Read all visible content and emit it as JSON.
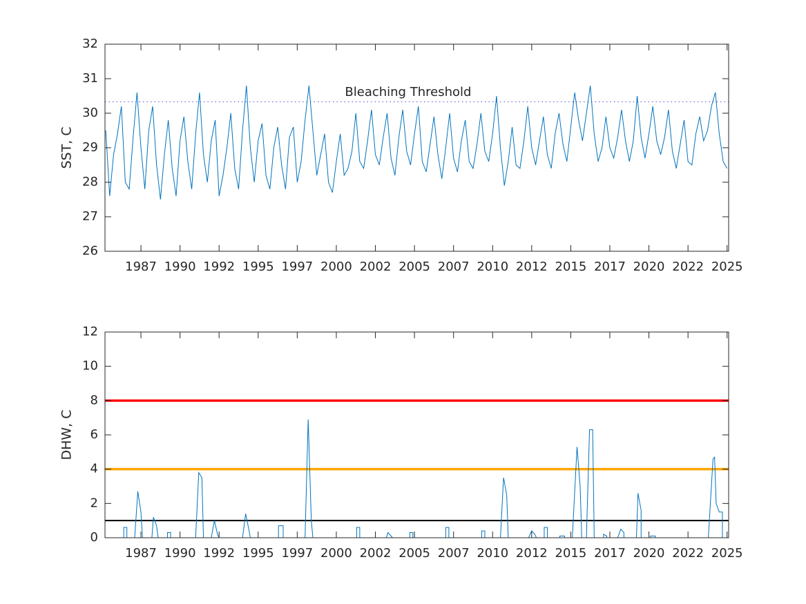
{
  "chart_data": [
    {
      "type": "line",
      "ylabel": "SST, C",
      "xlim": [
        1985.2,
        2025.1
      ],
      "xticks": [
        {
          "value": 1987.5,
          "label": "1987"
        },
        {
          "value": 1990.0,
          "label": "1990"
        },
        {
          "value": 1992.5,
          "label": "1992"
        },
        {
          "value": 1995.0,
          "label": "1995"
        },
        {
          "value": 1997.5,
          "label": "1997"
        },
        {
          "value": 2000.0,
          "label": "2000"
        },
        {
          "value": 2002.5,
          "label": "2002"
        },
        {
          "value": 2005.0,
          "label": "2005"
        },
        {
          "value": 2007.5,
          "label": "2007"
        },
        {
          "value": 2010.0,
          "label": "2010"
        },
        {
          "value": 2012.5,
          "label": "2012"
        },
        {
          "value": 2015.0,
          "label": "2015"
        },
        {
          "value": 2017.5,
          "label": "2017"
        },
        {
          "value": 2020.0,
          "label": "2020"
        },
        {
          "value": 2022.5,
          "label": "2022"
        },
        {
          "value": 2025.0,
          "label": "2025"
        }
      ],
      "ylim": [
        26,
        32
      ],
      "yticks": [
        26,
        27,
        28,
        29,
        30,
        31,
        32
      ],
      "x": [
        1985.25,
        1985.5,
        1985.75,
        1986.0,
        1986.25,
        1986.5,
        1986.75,
        1987.0,
        1987.25,
        1987.5,
        1987.75,
        1988.0,
        1988.25,
        1988.5,
        1988.75,
        1989.0,
        1989.25,
        1989.5,
        1989.75,
        1990.0,
        1990.25,
        1990.5,
        1990.75,
        1991.0,
        1991.25,
        1991.5,
        1991.75,
        1992.0,
        1992.25,
        1992.5,
        1992.75,
        1993.0,
        1993.25,
        1993.5,
        1993.75,
        1994.0,
        1994.25,
        1994.5,
        1994.75,
        1995.0,
        1995.25,
        1995.5,
        1995.75,
        1996.0,
        1996.25,
        1996.5,
        1996.75,
        1997.0,
        1997.25,
        1997.5,
        1997.75,
        1998.0,
        1998.25,
        1998.5,
        1998.75,
        1999.0,
        1999.25,
        1999.5,
        1999.75,
        2000.0,
        2000.25,
        2000.5,
        2000.75,
        2001.0,
        2001.25,
        2001.5,
        2001.75,
        2002.0,
        2002.25,
        2002.5,
        2002.75,
        2003.0,
        2003.25,
        2003.5,
        2003.75,
        2004.0,
        2004.25,
        2004.5,
        2004.75,
        2005.0,
        2005.25,
        2005.5,
        2005.75,
        2006.0,
        2006.25,
        2006.5,
        2006.75,
        2007.0,
        2007.25,
        2007.5,
        2007.75,
        2008.0,
        2008.25,
        2008.5,
        2008.75,
        2009.0,
        2009.25,
        2009.5,
        2009.75,
        2010.0,
        2010.25,
        2010.5,
        2010.75,
        2011.0,
        2011.25,
        2011.5,
        2011.75,
        2012.0,
        2012.25,
        2012.5,
        2012.75,
        2013.0,
        2013.25,
        2013.5,
        2013.75,
        2014.0,
        2014.25,
        2014.5,
        2014.75,
        2015.0,
        2015.25,
        2015.5,
        2015.75,
        2016.0,
        2016.25,
        2016.5,
        2016.75,
        2017.0,
        2017.25,
        2017.5,
        2017.75,
        2018.0,
        2018.25,
        2018.5,
        2018.75,
        2019.0,
        2019.25,
        2019.5,
        2019.75,
        2020.0,
        2020.25,
        2020.5,
        2020.75,
        2021.0,
        2021.25,
        2021.5,
        2021.75,
        2022.0,
        2022.25,
        2022.5,
        2022.75,
        2023.0,
        2023.25,
        2023.5,
        2023.75,
        2024.0,
        2024.25,
        2024.5,
        2024.75,
        2025.0
      ],
      "series": [
        {
          "color": "#0072bd",
          "values": [
            29.5,
            27.6,
            28.8,
            29.4,
            30.2,
            28.0,
            27.8,
            29.3,
            30.6,
            29.0,
            27.8,
            29.5,
            30.2,
            28.5,
            27.5,
            28.8,
            29.8,
            28.4,
            27.6,
            29.2,
            29.9,
            28.6,
            27.8,
            29.4,
            30.6,
            28.8,
            28.0,
            29.2,
            29.8,
            27.6,
            28.2,
            29.0,
            30.0,
            28.4,
            27.8,
            29.5,
            30.8,
            29.0,
            28.0,
            29.2,
            29.7,
            28.2,
            27.8,
            29.0,
            29.6,
            28.5,
            27.8,
            29.3,
            29.6,
            28.0,
            28.6,
            29.8,
            30.8,
            29.5,
            28.2,
            28.8,
            29.4,
            28.0,
            27.7,
            28.6,
            29.4,
            28.2,
            28.4,
            28.9,
            30.0,
            28.6,
            28.4,
            29.2,
            30.1,
            28.8,
            28.5,
            29.3,
            30.0,
            28.7,
            28.2,
            29.3,
            30.1,
            28.9,
            28.5,
            29.4,
            30.2,
            28.6,
            28.3,
            29.1,
            29.9,
            28.8,
            28.1,
            29.0,
            30.0,
            28.7,
            28.3,
            29.2,
            29.8,
            28.6,
            28.4,
            29.1,
            30.0,
            28.9,
            28.6,
            29.4,
            30.5,
            29.0,
            27.9,
            28.6,
            29.6,
            28.5,
            28.4,
            29.2,
            30.2,
            29.0,
            28.5,
            29.2,
            29.9,
            28.8,
            28.4,
            29.4,
            30.0,
            29.1,
            28.6,
            29.6,
            30.6,
            29.8,
            29.2,
            30.0,
            30.8,
            29.4,
            28.6,
            29.0,
            29.9,
            29.0,
            28.7,
            29.3,
            30.1,
            29.2,
            28.6,
            29.2,
            30.5,
            29.3,
            28.7,
            29.4,
            30.2,
            29.2,
            28.8,
            29.3,
            30.1,
            28.9,
            28.4,
            29.1,
            29.8,
            28.6,
            28.5,
            29.4,
            29.9,
            29.2,
            29.5,
            30.2,
            30.6,
            29.4,
            28.6,
            28.4
          ]
        }
      ],
      "hlines": [
        {
          "value": 30.33,
          "color": "#6b6bd6",
          "style": "dotted",
          "width": 1.3
        }
      ],
      "annotations": [
        {
          "text": "Bleaching Threshold",
          "x": 2000.55,
          "y": 30.6
        }
      ]
    },
    {
      "type": "line",
      "ylabel": "DHW, C",
      "xlim": [
        1985.2,
        2025.1
      ],
      "xticks": [
        {
          "value": 1987.5,
          "label": "1987"
        },
        {
          "value": 1990.0,
          "label": "1990"
        },
        {
          "value": 1992.5,
          "label": "1992"
        },
        {
          "value": 1995.0,
          "label": "1995"
        },
        {
          "value": 1997.5,
          "label": "1997"
        },
        {
          "value": 2000.0,
          "label": "2000"
        },
        {
          "value": 2002.5,
          "label": "2002"
        },
        {
          "value": 2005.0,
          "label": "2005"
        },
        {
          "value": 2007.5,
          "label": "2007"
        },
        {
          "value": 2010.0,
          "label": "2010"
        },
        {
          "value": 2012.5,
          "label": "2012"
        },
        {
          "value": 2015.0,
          "label": "2015"
        },
        {
          "value": 2017.5,
          "label": "2017"
        },
        {
          "value": 2020.0,
          "label": "2020"
        },
        {
          "value": 2022.5,
          "label": "2022"
        },
        {
          "value": 2025.0,
          "label": "2025"
        }
      ],
      "ylim": [
        0,
        12
      ],
      "yticks": [
        0,
        2,
        4,
        6,
        8,
        10,
        12
      ],
      "x": [
        1985.2,
        1986.4,
        1986.4,
        1986.6,
        1986.6,
        1987.1,
        1987.3,
        1987.5,
        1987.6,
        1988.2,
        1988.3,
        1988.5,
        1988.6,
        1989.2,
        1989.2,
        1989.4,
        1989.4,
        1991.0,
        1991.2,
        1991.4,
        1991.5,
        1992.0,
        1992.2,
        1992.4,
        1992.5,
        1994.0,
        1994.2,
        1994.4,
        1994.5,
        1996.3,
        1996.3,
        1996.6,
        1996.6,
        1998.0,
        1998.2,
        1998.4,
        1998.5,
        2001.3,
        2001.3,
        2001.5,
        2001.5,
        2003.2,
        2003.3,
        2003.5,
        2003.6,
        2004.7,
        2004.7,
        2004.9,
        2004.9,
        2007.0,
        2007.0,
        2007.2,
        2007.2,
        2009.3,
        2009.3,
        2009.5,
        2009.5,
        2010.5,
        2010.7,
        2010.9,
        2011.0,
        2012.3,
        2012.5,
        2012.7,
        2012.8,
        2013.3,
        2013.3,
        2013.5,
        2013.5,
        2014.3,
        2014.3,
        2014.6,
        2014.6,
        2015.1,
        2015.4,
        2015.6,
        2015.7,
        2016.0,
        2016.2,
        2016.4,
        2016.5,
        2017.1,
        2017.1,
        2017.3,
        2017.3,
        2018.0,
        2018.2,
        2018.4,
        2018.4,
        2019.2,
        2019.3,
        2019.5,
        2019.5,
        2020.1,
        2020.1,
        2020.4,
        2020.4,
        2023.8,
        2024.1,
        2024.2,
        2024.3,
        2024.5,
        2024.7,
        2024.7,
        2025.0
      ],
      "series": [
        {
          "color": "#0072bd",
          "values": [
            0,
            0,
            0.6,
            0.6,
            0,
            0,
            2.7,
            1.5,
            0,
            0,
            1.2,
            0.7,
            0,
            0,
            0.3,
            0.3,
            0,
            0,
            3.8,
            3.5,
            0,
            0,
            1.0,
            0.2,
            0,
            0,
            1.4,
            0.5,
            0,
            0,
            0.7,
            0.7,
            0,
            0,
            6.9,
            1.0,
            0,
            0,
            0.6,
            0.6,
            0,
            0,
            0.3,
            0.1,
            0,
            0,
            0.3,
            0.3,
            0,
            0,
            0.6,
            0.6,
            0,
            0,
            0.4,
            0.4,
            0,
            0,
            3.5,
            2.5,
            0,
            0,
            0.4,
            0.2,
            0,
            0,
            0.6,
            0.6,
            0,
            0,
            0.1,
            0.1,
            0,
            0,
            5.3,
            3.0,
            0,
            0,
            6.3,
            6.3,
            0,
            0,
            0.2,
            0.1,
            0,
            0,
            0.5,
            0.3,
            0,
            0,
            2.6,
            1.6,
            0,
            0,
            0.1,
            0.1,
            0,
            0,
            4.6,
            4.7,
            2.0,
            1.5,
            1.5,
            0,
            0
          ]
        }
      ],
      "hlines": [
        {
          "value": 8,
          "color": "#ff0000",
          "style": "solid",
          "width": 3.5
        },
        {
          "value": 4,
          "color": "#ffa500",
          "style": "solid",
          "width": 3.5
        },
        {
          "value": 1,
          "color": "#000000",
          "style": "solid",
          "width": 2
        }
      ]
    }
  ]
}
